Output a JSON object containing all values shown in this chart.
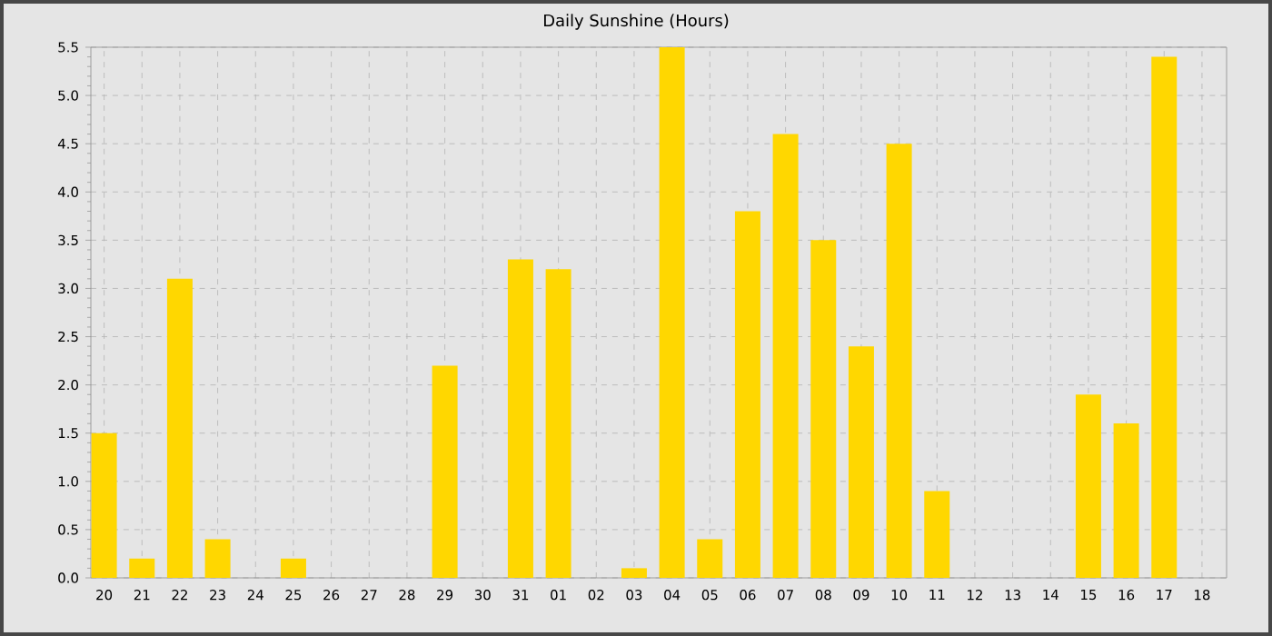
{
  "chart_data": {
    "type": "bar",
    "title": "Daily Sunshine (Hours)",
    "categories": [
      "20",
      "21",
      "22",
      "23",
      "24",
      "25",
      "26",
      "27",
      "28",
      "29",
      "30",
      "31",
      "01",
      "02",
      "03",
      "04",
      "05",
      "06",
      "07",
      "08",
      "09",
      "10",
      "11",
      "12",
      "13",
      "14",
      "15",
      "16",
      "17",
      "18"
    ],
    "values": [
      1.5,
      0.2,
      3.1,
      0.4,
      0,
      0.2,
      0,
      0,
      0,
      2.2,
      0,
      3.3,
      3.2,
      0,
      0.1,
      5.5,
      0.4,
      3.8,
      4.6,
      3.5,
      2.4,
      4.5,
      0.9,
      0,
      0,
      0,
      1.9,
      1.6,
      5.4,
      0
    ],
    "color": "#ffd700",
    "ylim": [
      0,
      5.5
    ],
    "yticks": [
      {
        "value": 0,
        "label": "0.0"
      },
      {
        "value": 0.5,
        "label": "0.5"
      },
      {
        "value": 1,
        "label": "1.0"
      },
      {
        "value": 1.5,
        "label": "1.5"
      },
      {
        "value": 2,
        "label": "2.0"
      },
      {
        "value": 2.5,
        "label": "2.5"
      },
      {
        "value": 3,
        "label": "3.0"
      },
      {
        "value": 3.5,
        "label": "3.5"
      },
      {
        "value": 4,
        "label": "4.0"
      },
      {
        "value": 4.5,
        "label": "4.5"
      },
      {
        "value": 5,
        "label": "5.0"
      },
      {
        "value": 5.5,
        "label": "5.5"
      }
    ],
    "grid": true
  }
}
